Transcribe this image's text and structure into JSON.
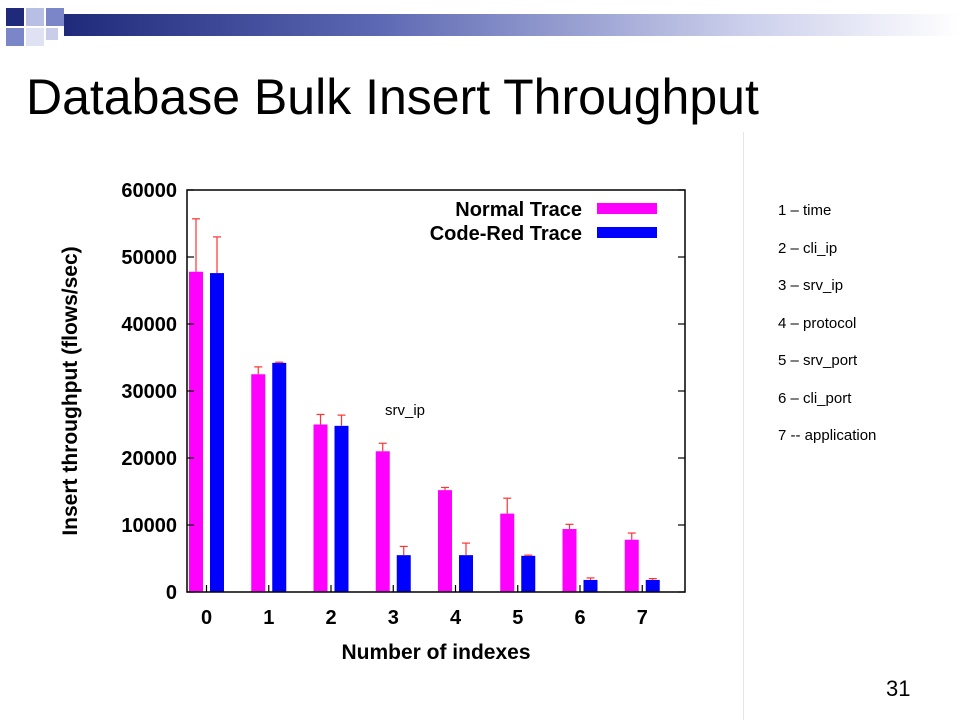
{
  "slide": {
    "title": "Database Bulk Insert Throughput",
    "page_number": "31",
    "accent_colors": [
      "#1f2a7a",
      "#7b86c8",
      "#b8bfe4"
    ]
  },
  "index_legend": [
    "1 – time",
    "2 – cli_ip",
    "3 – srv_ip",
    "4 – protocol",
    "5 – srv_port",
    "6 – cli_port",
    "7 -- application"
  ],
  "chart_data": {
    "type": "bar",
    "title": "",
    "xlabel": "Number of indexes",
    "ylabel": "Insert throughput (flows/sec)",
    "categories": [
      "0",
      "1",
      "2",
      "3",
      "4",
      "5",
      "6",
      "7"
    ],
    "ylim": [
      0,
      60000
    ],
    "yticks": [
      "0",
      "10000",
      "20000",
      "30000",
      "40000",
      "50000",
      "60000"
    ],
    "legend_position": "top-right",
    "annotation": "srv_ip",
    "series": [
      {
        "name": "Normal Trace",
        "color": "#ff00ff",
        "values": [
          47800,
          32500,
          25000,
          21000,
          15200,
          11700,
          9400,
          7800
        ],
        "error_upper": [
          55700,
          33600,
          26500,
          22200,
          15600,
          14000,
          10100,
          8800
        ]
      },
      {
        "name": "Code-Red Trace",
        "color": "#0000ff",
        "values": [
          47600,
          34200,
          24800,
          5500,
          5500,
          5400,
          1800,
          1800
        ],
        "error_upper": [
          53000,
          34300,
          26400,
          6800,
          7300,
          5500,
          2100,
          2000
        ]
      }
    ]
  }
}
